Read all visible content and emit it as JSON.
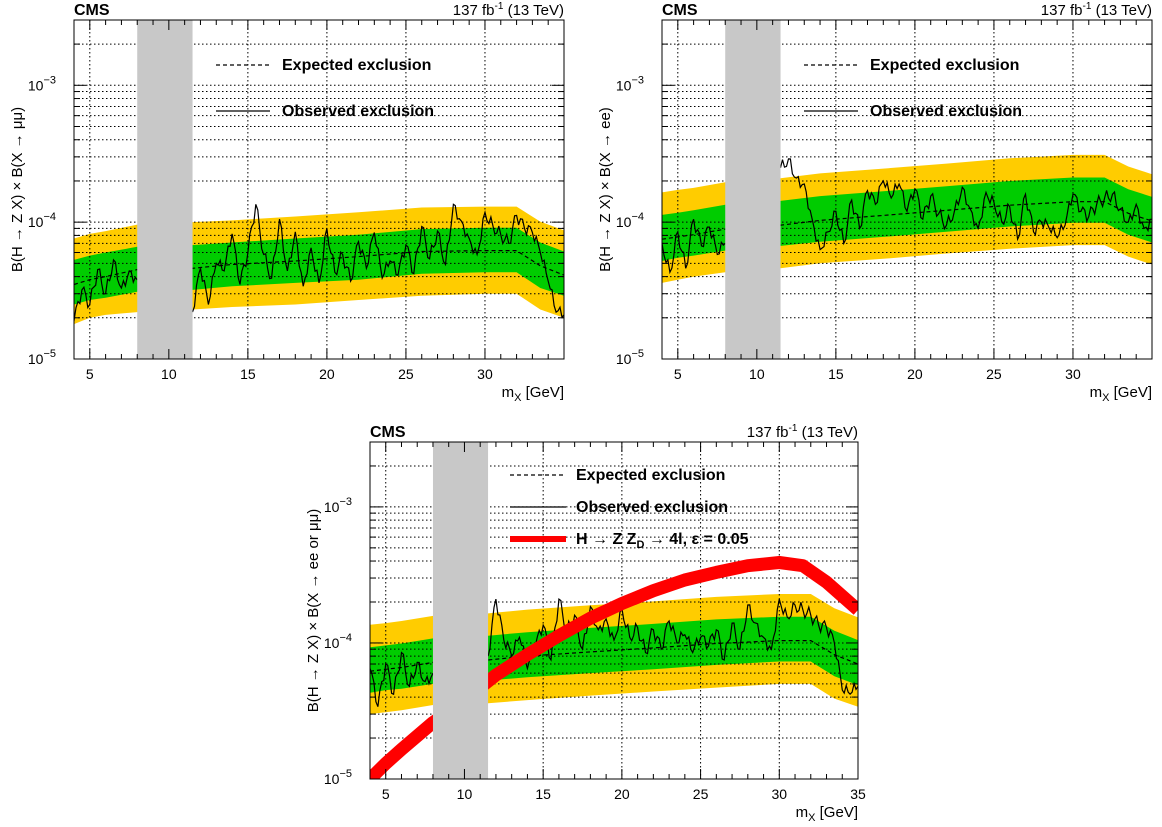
{
  "chart_data": [
    {
      "id": "mumu",
      "type": "line",
      "title": "CMS",
      "lumi_value": "137 fb",
      "lumi_exp": "-1",
      "lumi_energy": "(13 TeV)",
      "xlabel_main": "m",
      "xlabel_sub": "X",
      "xlabel_unit": "[GeV]",
      "ylabel": "B(H → Z X) × B(X → μμ)",
      "xlim": [
        4,
        35
      ],
      "ylim": [
        1e-05,
        0.003
      ],
      "ylog": true,
      "grid": true,
      "xticks": [
        5,
        10,
        15,
        20,
        25,
        30
      ],
      "yticks": [
        {
          "base": "10",
          "exp": "−5",
          "v": 1e-05
        },
        {
          "base": "10",
          "exp": "−4",
          "v": 0.0001
        },
        {
          "base": "10",
          "exp": "−3",
          "v": 0.001
        }
      ],
      "excluded_band": [
        8,
        11.5
      ],
      "legend": [
        "Expected exclusion",
        "Observed exclusion"
      ],
      "x_nodes": [
        4,
        5,
        6,
        8,
        11.5,
        14,
        18,
        22,
        26,
        30,
        32,
        33.5,
        35
      ],
      "expected": [
        3.5e-05,
        3.8e-05,
        4e-05,
        4.5e-05,
        4.6e-05,
        4.9e-05,
        5.2e-05,
        5.6e-05,
        6.1e-05,
        6.2e-05,
        6.2e-05,
        4.8e-05,
        4.1e-05
      ],
      "band1_lo": [
        2.5e-05,
        2.7e-05,
        2.8e-05,
        3.1e-05,
        3.2e-05,
        3.4e-05,
        3.6e-05,
        3.8e-05,
        4.2e-05,
        4.3e-05,
        4.3e-05,
        3.3e-05,
        2.9e-05
      ],
      "band1_hi": [
        5.3e-05,
        5.7e-05,
        6e-05,
        6.6e-05,
        6.8e-05,
        7.1e-05,
        7.6e-05,
        8.1e-05,
        8.9e-05,
        9.1e-05,
        9.1e-05,
        7.1e-05,
        6.1e-05
      ],
      "band2_lo": [
        1.8e-05,
        2e-05,
        2.1e-05,
        2.2e-05,
        2.3e-05,
        2.4e-05,
        2.5e-05,
        2.7e-05,
        2.9e-05,
        3e-05,
        3e-05,
        2.3e-05,
        2e-05
      ],
      "band2_hi": [
        7.6e-05,
        8.2e-05,
        8.6e-05,
        9.6e-05,
        0.0001,
        0.000103,
        0.00011,
        0.000118,
        0.000128,
        0.00013,
        0.00013,
        0.000101,
        8.7e-05
      ],
      "obs_x": [
        4,
        4.5,
        5,
        5.5,
        6,
        6.5,
        7,
        7.5,
        8,
        11.5,
        12,
        12.5,
        13,
        13.5,
        14,
        14.5,
        15,
        15.5,
        16,
        16.5,
        17,
        17.5,
        18,
        18.5,
        19,
        19.5,
        20,
        20.5,
        21,
        21.5,
        22,
        22.5,
        23,
        23.5,
        24,
        24.5,
        25,
        25.5,
        26,
        26.5,
        27,
        27.5,
        28,
        28.5,
        29,
        29.5,
        30,
        30.5,
        31,
        31.5,
        32,
        32.5,
        33,
        33.5,
        34,
        34.5,
        35
      ],
      "observed": [
        1.9e-05,
        3.2e-05,
        2.5e-05,
        4.5e-05,
        3e-05,
        5.3e-05,
        3.3e-05,
        4.4e-05,
        3.8e-05,
        2.2e-05,
        4.6e-05,
        2.5e-05,
        5e-05,
        4.4e-05,
        8.2e-05,
        3.5e-05,
        6e-05,
        0.000135,
        5.8e-05,
        3.9e-05,
        0.000105,
        4.4e-05,
        8.5e-05,
        3.4e-05,
        6.5e-05,
        3.6e-05,
        9e-05,
        4.3e-05,
        5.8e-05,
        3.7e-05,
        7.2e-05,
        4.6e-05,
        8.4e-05,
        3.9e-05,
        5.2e-05,
        4.1e-05,
        6.8e-05,
        4.2e-05,
        9.3e-05,
        5.4e-05,
        8.6e-05,
        4.9e-05,
        0.000135,
        0.000102,
        7.6e-05,
        5.8e-05,
        0.000118,
        9.4e-05,
        8.1e-05,
        7e-05,
        0.000112,
        9e-05,
        8.4e-05,
        6e-05,
        3.7e-05,
        2.2e-05,
        2.1e-05
      ],
      "legend_pos": "top-center"
    },
    {
      "id": "ee",
      "type": "line",
      "title": "CMS",
      "lumi_value": "137 fb",
      "lumi_exp": "-1",
      "lumi_energy": "(13 TeV)",
      "xlabel_main": "m",
      "xlabel_sub": "X",
      "xlabel_unit": "[GeV]",
      "ylabel": "B(H → Z X) × B(X → ee)",
      "xlim": [
        4,
        35
      ],
      "ylim": [
        1e-05,
        0.003
      ],
      "ylog": true,
      "grid": true,
      "xticks": [
        5,
        10,
        15,
        20,
        25,
        30
      ],
      "yticks": [
        {
          "base": "10",
          "exp": "−5",
          "v": 1e-05
        },
        {
          "base": "10",
          "exp": "−4",
          "v": 0.0001
        },
        {
          "base": "10",
          "exp": "−3",
          "v": 0.001
        }
      ],
      "excluded_band": [
        8,
        11.5
      ],
      "legend": [
        "Expected exclusion",
        "Observed exclusion"
      ],
      "x_nodes": [
        4,
        5,
        6,
        8,
        11.5,
        14,
        18,
        22,
        26,
        30,
        32,
        33.5,
        35
      ],
      "expected": [
        7.5e-05,
        7.8e-05,
        8.1e-05,
        8.9e-05,
        9.5e-05,
        0.000103,
        0.000112,
        0.000122,
        0.000133,
        0.000141,
        0.000141,
        0.000116,
        0.000102
      ],
      "band1_lo": [
        5.2e-05,
        5.5e-05,
        5.7e-05,
        6.2e-05,
        6.7e-05,
        7.2e-05,
        7.8e-05,
        8.5e-05,
        9.3e-05,
        9.9e-05,
        9.9e-05,
        8.1e-05,
        7.1e-05
      ],
      "band1_hi": [
        0.000113,
        0.000117,
        0.000122,
        0.000134,
        0.000143,
        0.000155,
        0.000168,
        0.000183,
        0.0002,
        0.000212,
        0.000212,
        0.000174,
        0.000153
      ],
      "band2_lo": [
        3.6e-05,
        3.8e-05,
        4e-05,
        4.3e-05,
        4.6e-05,
        5e-05,
        5.4e-05,
        5.9e-05,
        6.4e-05,
        6.8e-05,
        6.8e-05,
        5.6e-05,
        4.9e-05
      ],
      "band2_hi": [
        0.000165,
        0.000172,
        0.000178,
        0.000196,
        0.000209,
        0.000227,
        0.000246,
        0.000268,
        0.000293,
        0.00031,
        0.00031,
        0.000255,
        0.000224
      ],
      "obs_x": [
        4,
        4.5,
        5,
        5.5,
        6,
        6.5,
        7,
        7.5,
        8,
        11.5,
        12,
        12.5,
        13,
        13.5,
        14,
        14.5,
        15,
        15.5,
        16,
        16.5,
        17,
        17.5,
        18,
        18.5,
        19,
        19.5,
        20,
        20.5,
        21,
        21.5,
        22,
        22.5,
        23,
        23.5,
        24,
        24.5,
        25,
        25.5,
        26,
        26.5,
        27,
        27.5,
        28,
        28.5,
        29,
        29.5,
        30,
        30.5,
        31,
        31.5,
        32,
        32.5,
        33,
        33.5,
        34,
        34.5,
        35
      ],
      "observed": [
        7e-05,
        4.3e-05,
        8.5e-05,
        4.6e-05,
        0.000105,
        6.7e-05,
        9.2e-05,
        5.8e-05,
        7e-05,
        0.00025,
        0.00029,
        0.00021,
        0.00019,
        0.000105,
        6.3e-05,
        8.5e-05,
        0.00012,
        7e-05,
        0.000145,
        9e-05,
        0.00017,
        0.000135,
        0.0002,
        0.00015,
        0.00019,
        0.00012,
        0.000175,
        0.000105,
        0.000155,
        0.000115,
        9.5e-05,
        0.00012,
        0.00018,
        0.000125,
        9e-05,
        0.000165,
        0.00014,
        0.0001,
        0.00013,
        7.5e-05,
        0.00016,
        8.5e-05,
        0.0001,
        9e-05,
        7.7e-05,
        9.5e-05,
        0.00016,
        0.00012,
        0.00011,
        0.000135,
        0.00015,
        0.00016,
        0.000125,
        0.0001,
        0.000135,
        9e-05,
        0.000105
      ],
      "legend_pos": "top-center"
    },
    {
      "id": "combined",
      "type": "line",
      "title": "CMS",
      "lumi_value": "137 fb",
      "lumi_exp": "-1",
      "lumi_energy": "(13 TeV)",
      "xlabel_main": "m",
      "xlabel_sub": "X",
      "xlabel_unit": "[GeV]",
      "ylabel": "B(H → Z X) × B(X → ee or μμ)",
      "xlim": [
        4,
        35
      ],
      "ylim": [
        1e-05,
        0.003
      ],
      "ylog": true,
      "grid": true,
      "xticks": [
        5,
        10,
        15,
        20,
        25,
        30,
        35
      ],
      "yticks": [
        {
          "base": "10",
          "exp": "−5",
          "v": 1e-05
        },
        {
          "base": "10",
          "exp": "−4",
          "v": 0.0001
        },
        {
          "base": "10",
          "exp": "−3",
          "v": 0.001
        }
      ],
      "excluded_band": [
        8,
        11.5
      ],
      "legend": [
        "Expected exclusion",
        "Observed exclusion"
      ],
      "zd_legend": {
        "prefix": "H → Z Z",
        "sub": "D",
        "suffix": " → 4l, ε = 0.05"
      },
      "x_nodes": [
        4,
        5,
        6,
        8,
        11.5,
        14,
        18,
        22,
        26,
        30,
        32,
        33.5,
        35
      ],
      "expected": [
        6.2e-05,
        6.4e-05,
        6.6e-05,
        7.2e-05,
        7.5e-05,
        8e-05,
        8.6e-05,
        9.2e-05,
        9.9e-05,
        0.000104,
        0.000104,
        8.2e-05,
        7e-05
      ],
      "band1_lo": [
        4.3e-05,
        4.5e-05,
        4.6e-05,
        5e-05,
        5.3e-05,
        5.6e-05,
        6e-05,
        6.4e-05,
        6.9e-05,
        7.3e-05,
        7.3e-05,
        5.7e-05,
        4.9e-05
      ],
      "band1_hi": [
        9.3e-05,
        9.6e-05,
        9.9e-05,
        0.000108,
        0.000113,
        0.00012,
        0.000129,
        0.000138,
        0.000149,
        0.000156,
        0.000156,
        0.000123,
        0.000105
      ],
      "band2_lo": [
        3e-05,
        3.1e-05,
        3.2e-05,
        3.5e-05,
        3.6e-05,
        3.8e-05,
        4.1e-05,
        4.4e-05,
        4.7e-05,
        5e-05,
        5e-05,
        3.9e-05,
        3.4e-05
      ],
      "band2_hi": [
        0.000136,
        0.00014,
        0.000145,
        0.000158,
        0.000165,
        0.000176,
        0.000189,
        0.000202,
        0.000218,
        0.000229,
        0.000229,
        0.00018,
        0.000154
      ],
      "obs_x": [
        4,
        4.5,
        5,
        5.5,
        6,
        6.5,
        7,
        7.5,
        8,
        11.5,
        12,
        12.5,
        13,
        13.5,
        14,
        14.5,
        15,
        15.5,
        16,
        16.5,
        17,
        17.5,
        18,
        18.5,
        19,
        19.5,
        20,
        20.5,
        21,
        21.5,
        22,
        22.5,
        23,
        23.5,
        24,
        24.5,
        25,
        25.5,
        26,
        26.5,
        27,
        27.5,
        28,
        28.5,
        29,
        29.5,
        30,
        30.5,
        31,
        31.5,
        32,
        32.5,
        33,
        33.5,
        34,
        34.5,
        35
      ],
      "observed": [
        6.5e-05,
        3.4e-05,
        7e-05,
        4.2e-05,
        8.5e-05,
        4.8e-05,
        7.2e-05,
        5.2e-05,
        6e-05,
        8e-05,
        0.00021,
        0.000105,
        8e-05,
        0.00011,
        6.5e-05,
        9.5e-05,
        0.000135,
        7.5e-05,
        0.00021,
        0.00012,
        0.00016,
        9e-05,
        0.000185,
        0.000125,
        0.00015,
        0.000105,
        0.00018,
        0.00011,
        0.00013,
        8.5e-05,
        0.000125,
        9e-05,
        0.000145,
        0.0001,
        0.000115,
        8.5e-05,
        0.00011,
        9.5e-05,
        0.000125,
        7.5e-05,
        0.00014,
        9e-05,
        0.00019,
        0.00014,
        0.00011,
        9e-05,
        0.00021,
        0.000155,
        0.00019,
        0.000175,
        0.00016,
        0.000135,
        0.00013,
        0.0001,
        4.5e-05,
        4.2e-05,
        4.8e-05
      ],
      "zd_x": [
        4,
        5,
        6,
        8,
        10,
        12,
        14,
        16,
        18,
        20,
        22,
        24,
        26,
        28,
        30,
        31.5,
        33,
        35
      ],
      "zd_y": [
        1e-05,
        1.3e-05,
        1.65e-05,
        2.6e-05,
        3.8e-05,
        5.8e-05,
        8.2e-05,
        0.000113,
        0.000152,
        0.000195,
        0.000242,
        0.00029,
        0.00033,
        0.00037,
        0.00039,
        0.00037,
        0.00028,
        0.000175
      ],
      "legend_pos": "top-center"
    }
  ]
}
